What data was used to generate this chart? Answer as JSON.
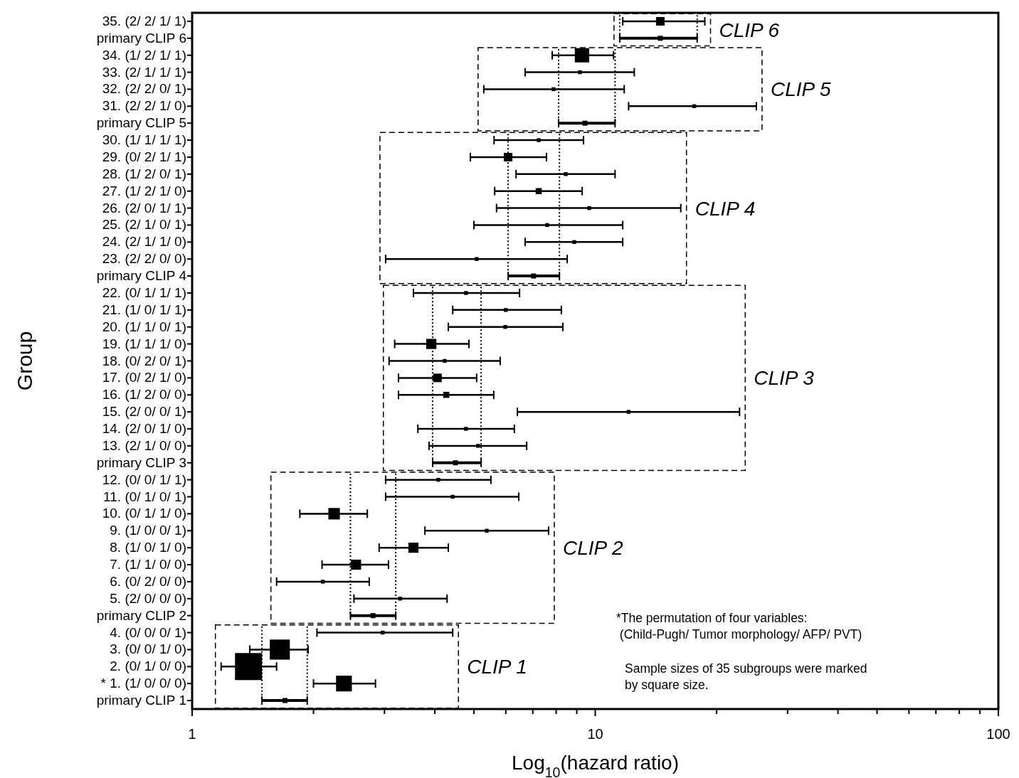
{
  "chart_data": {
    "type": "bubble",
    "orientation": "horizontal",
    "log": "x",
    "marker": "square",
    "xlabel": "Log$_{10}$(hazard ratio)",
    "ylabel": "Group",
    "categories": [
      "35. (2/ 2/ 1/ 1)",
      "primary CLIP 6",
      "34. (1/ 2/ 1/ 1)",
      "33. (2/ 1/ 1/ 1)",
      "32. (2/ 2/ 0/ 1)",
      "31. (2/ 2/ 1/ 0)",
      "primary CLIP 5",
      "30. (1/ 1/ 1/ 1)",
      "29. (0/ 2/ 1/ 1)",
      "28. (1/ 2/ 0/ 1)",
      "27. (1/ 2/ 1/ 0)",
      "26. (2/ 0/ 1/ 1)",
      "25. (2/ 1/ 0/ 1)",
      "24. (2/ 1/ 1/ 0)",
      "23. (2/ 2/ 0/ 0)",
      "primary CLIP 4",
      "22. (0/ 1/ 1/ 1)",
      "21. (1/ 0/ 1/ 1)",
      "20. (1/ 1/ 0/ 1)",
      "19. (1/ 1/ 1/ 0)",
      "18. (0/ 2/ 0/ 1)",
      "17. (0/ 2/ 1/ 0)",
      "16. (1/ 2/ 0/ 0)",
      "15. (2/ 0/ 0/ 1)",
      "14. (2/ 0/ 1/ 0)",
      "13. (2/ 1/ 0/ 0)",
      "primary CLIP 3",
      "12. (0/ 0/ 1/ 1)",
      "11. (0/ 1/ 0/ 1)",
      "10. (0/ 1/ 1/ 0)",
      "9. (1/ 0/ 0/ 1)",
      "8. (1/ 0/ 1/ 0)",
      "7. (1/ 1/ 0/ 0)",
      "6. (0/ 2/ 0/ 0)",
      "5. (2/ 0/ 0/ 0)",
      "primary CLIP 2",
      "4. (0/ 0/ 0/ 1)",
      "3. (0/ 0/ 1/ 0)",
      "2. (0/ 1/ 0/ 0)",
      "* 1. (1/ 0/ 0/ 0)",
      "primary CLIP 1"
    ],
    "series": [
      {
        "color": "#000000",
        "values": [
          14.5,
          null,
          9.27,
          9.16,
          7.88,
          17.6,
          null,
          7.24,
          6.08,
          8.45,
          7.24,
          9.66,
          7.6,
          8.87,
          5.08,
          null,
          4.78,
          6.0,
          5.98,
          3.92,
          4.23,
          4.06,
          4.27,
          12.1,
          4.78,
          5.12,
          null,
          4.08,
          4.43,
          2.25,
          5.38,
          3.54,
          2.55,
          2.11,
          3.28,
          null,
          2.97,
          1.65,
          1.38,
          2.38,
          null
        ],
        "errors": [
          [
            11.7,
            18.7
          ],
          null,
          [
            7.82,
            11.1
          ],
          [
            6.7,
            12.5
          ],
          [
            5.29,
            11.8
          ],
          [
            12.1,
            25.1
          ],
          null,
          [
            5.61,
            9.35
          ],
          [
            4.9,
            7.57
          ],
          [
            6.36,
            11.2
          ],
          [
            5.63,
            9.28
          ],
          [
            5.69,
            16.3
          ],
          [
            5.0,
            11.7
          ],
          [
            6.7,
            11.7
          ],
          [
            3.02,
            8.52
          ],
          null,
          [
            3.54,
            6.49
          ],
          [
            4.43,
            8.24
          ],
          [
            4.32,
            8.31
          ],
          [
            3.18,
            4.86
          ],
          [
            3.08,
            5.81
          ],
          [
            3.25,
            5.08
          ],
          [
            3.25,
            5.6
          ],
          [
            6.41,
            22.8
          ],
          [
            3.63,
            6.3
          ],
          [
            3.87,
            6.76
          ],
          null,
          [
            3.02,
            5.51
          ],
          [
            3.02,
            6.46
          ],
          [
            1.85,
            2.72
          ],
          [
            3.78,
            7.66
          ],
          [
            2.91,
            4.32
          ],
          [
            2.1,
            3.07
          ],
          [
            1.62,
            2.75
          ],
          [
            2.52,
            4.29
          ],
          null,
          [
            2.04,
            4.43
          ],
          [
            1.39,
            1.94
          ],
          [
            1.18,
            1.62
          ],
          [
            2.0,
            2.85
          ],
          null
        ],
        "sizes": [
          0.1,
          null,
          0.28,
          0.02,
          0.02,
          0.02,
          null,
          0.02,
          0.1,
          0.02,
          0.05,
          0.02,
          0.02,
          0.02,
          0.02,
          null,
          0.02,
          0.02,
          0.02,
          0.14,
          0.02,
          0.1,
          0.05,
          0.02,
          0.02,
          0.02,
          null,
          0.02,
          0.02,
          0.18,
          0.02,
          0.14,
          0.14,
          0.02,
          0.02,
          null,
          0.02,
          0.55,
          1,
          0.34,
          null
        ]
      },
      {
        "type": "scatter",
        "color": "#000000",
        "values": [
          null,
          14.5,
          null,
          null,
          null,
          null,
          9.43,
          null,
          null,
          null,
          null,
          null,
          null,
          null,
          null,
          7.03,
          null,
          null,
          null,
          null,
          null,
          null,
          null,
          null,
          null,
          null,
          4.5,
          null,
          null,
          null,
          null,
          null,
          null,
          null,
          null,
          2.81,
          null,
          null,
          null,
          null,
          1.7
        ],
        "errors": [
          null,
          [
            11.5,
            17.9
          ],
          null,
          null,
          null,
          null,
          [
            8.11,
            11.2
          ],
          null,
          null,
          null,
          null,
          null,
          null,
          null,
          null,
          [
            6.08,
            8.15
          ],
          null,
          null,
          null,
          null,
          null,
          null,
          null,
          null,
          null,
          null,
          [
            3.95,
            5.21
          ],
          null,
          null,
          null,
          null,
          null,
          null,
          null,
          null,
          [
            2.47,
            3.2
          ],
          null,
          null,
          null,
          null,
          [
            1.49,
            1.93
          ]
        ]
      }
    ],
    "xlim": [
      1,
      100
    ],
    "xticks": [
      1,
      {
        "value": 2,
        "label": null
      },
      {
        "value": 3,
        "label": null
      },
      {
        "value": 4,
        "label": null
      },
      {
        "value": 5,
        "label": null
      },
      {
        "value": 6,
        "label": null
      },
      {
        "value": 7,
        "label": null
      },
      {
        "value": 8,
        "label": null
      },
      {
        "value": 9,
        "label": null
      },
      10,
      {
        "value": 20,
        "label": null
      },
      {
        "value": 30,
        "label": null
      },
      {
        "value": 40,
        "label": null
      },
      {
        "value": 50,
        "label": null
      },
      {
        "value": 60,
        "label": null
      },
      {
        "value": 70,
        "label": null
      },
      {
        "value": 80,
        "label": null
      },
      {
        "value": 90,
        "label": null
      },
      100
    ],
    "annotations": [
      "CLIP 6",
      "CLIP 5",
      "CLIP 4",
      "CLIP 3",
      "CLIP 2",
      "CLIP 1",
      "*The permutation of four variables:\n (Child-Pugh/ Tumor morphology/ AFP/ PVT)",
      "Sample sizes of 35 subgroups were marked\nby square size."
    ]
  }
}
